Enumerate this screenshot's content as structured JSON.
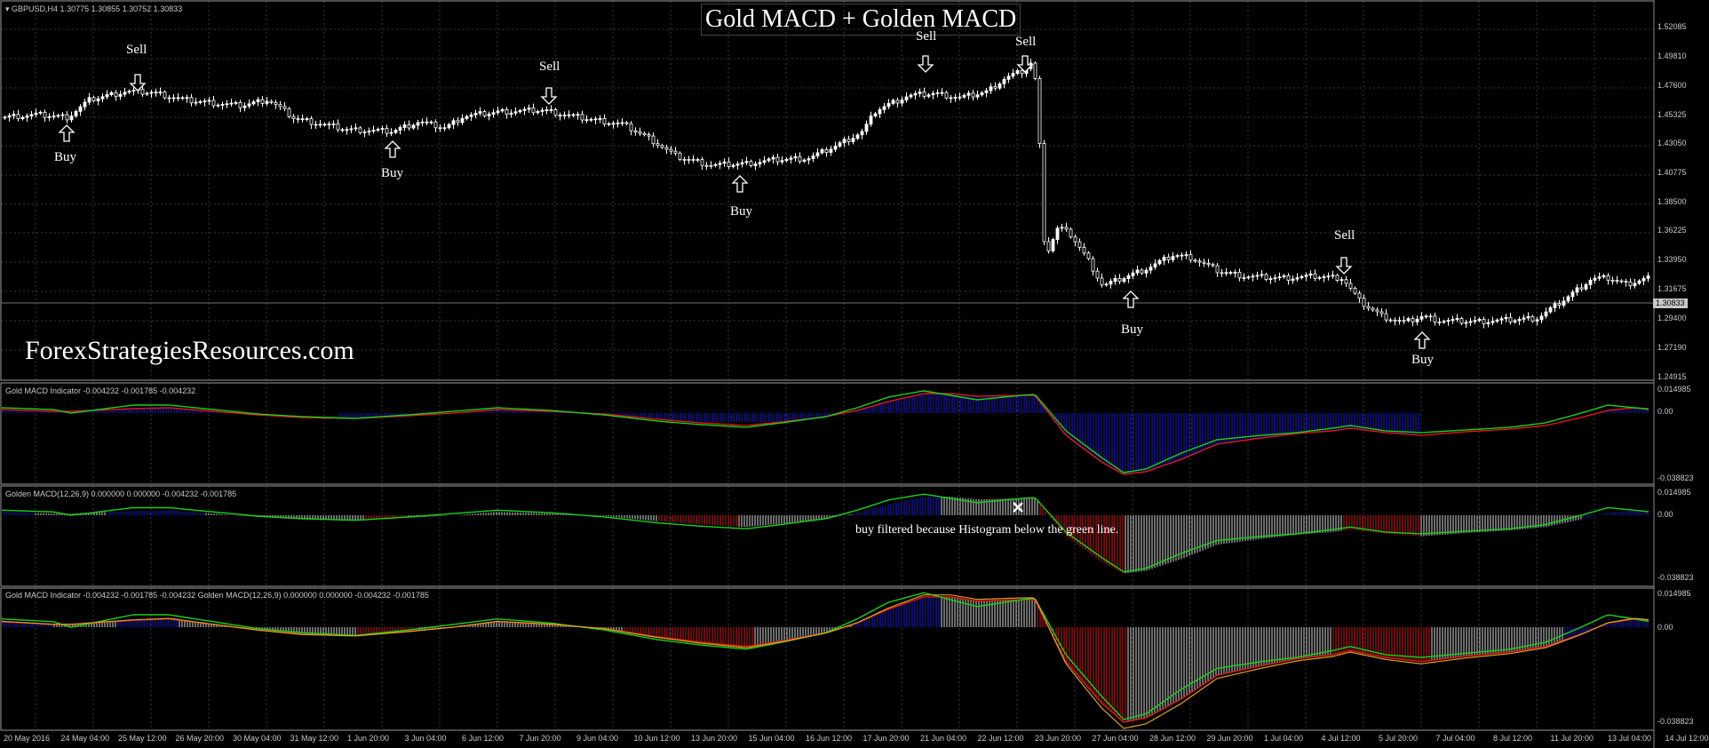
{
  "title": "Gold MACD + Golden MACD",
  "watermark": "ForexStrategiesResources.com",
  "main": {
    "symbol_header": "GBPUSD,H4  1.30775 1.30855 1.30752 1.30833",
    "current_price": "1.30833",
    "price_labels": [
      "1.52085",
      "1.49810",
      "1.47600",
      "1.45325",
      "1.43050",
      "1.40775",
      "1.38500",
      "1.36225",
      "1.33950",
      "1.31675",
      "1.29400",
      "1.27190",
      "1.24915"
    ],
    "signals": [
      {
        "type": "buy",
        "text": "Buy"
      },
      {
        "type": "sell",
        "text": "Sell"
      },
      {
        "type": "buy",
        "text": "Buy"
      },
      {
        "type": "sell",
        "text": "Sell"
      },
      {
        "type": "buy",
        "text": "Buy"
      },
      {
        "type": "sell",
        "text": "Sell"
      },
      {
        "type": "sell",
        "text": "Sell"
      },
      {
        "type": "buy",
        "text": "Buy"
      },
      {
        "type": "sell",
        "text": "Sell"
      },
      {
        "type": "buy",
        "text": "Buy"
      }
    ]
  },
  "panels": [
    {
      "header": "Gold MACD Indicator -0.004232 -0.001785 -0.004232",
      "top": "0.014985",
      "mid": "0.00",
      "bottom": "-0.038823"
    },
    {
      "header": "Golden MACD(12,26,9) 0.000000 0.000000 -0.004232 -0.001785",
      "top": "0.014985",
      "mid": "0.00",
      "bottom": "-0.038823",
      "note": "buy filtered because Histogram below the green line."
    },
    {
      "header": "Gold MACD Indicator -0.004232 -0.001785 -0.004232  Golden MACD(12,26,9) 0.000000 0.000000 -0.004232 -0.001785",
      "top": "0.014985",
      "mid": "0.00",
      "bottom": "-0.038823"
    }
  ],
  "time_labels": [
    "20 May 2016",
    "24 May 04:00",
    "25 May 12:00",
    "26 May 20:00",
    "30 May 04:00",
    "31 May 12:00",
    "1 Jun 20:00",
    "3 Jun 04:00",
    "6 Jun 12:00",
    "7 Jun 20:00",
    "9 Jun 04:00",
    "10 Jun 12:00",
    "13 Jun 20:00",
    "15 Jun 04:00",
    "16 Jun 12:00",
    "17 Jun 20:00",
    "21 Jun 04:00",
    "22 Jun 12:00",
    "23 Jun 20:00",
    "27 Jun 04:00",
    "28 Jun 12:00",
    "29 Jun 20:00",
    "1 Jul 04:00",
    "4 Jul 12:00",
    "5 Jul 20:00",
    "7 Jul 04:00",
    "8 Jul 12:00",
    "11 Jul 20:00",
    "13 Jul 04:00",
    "14 Jul 12:00"
  ],
  "colors": {
    "background": "#000000",
    "grid": "#3a3a3a",
    "panel_border": "#9a9a9a",
    "blue_hist": "#1c1ccc",
    "red_hist": "#d01a1a",
    "white_hist": "#d8d8d8",
    "green_line": "#19d119",
    "red_line": "#e01818",
    "orange_line": "#e0a020"
  }
}
